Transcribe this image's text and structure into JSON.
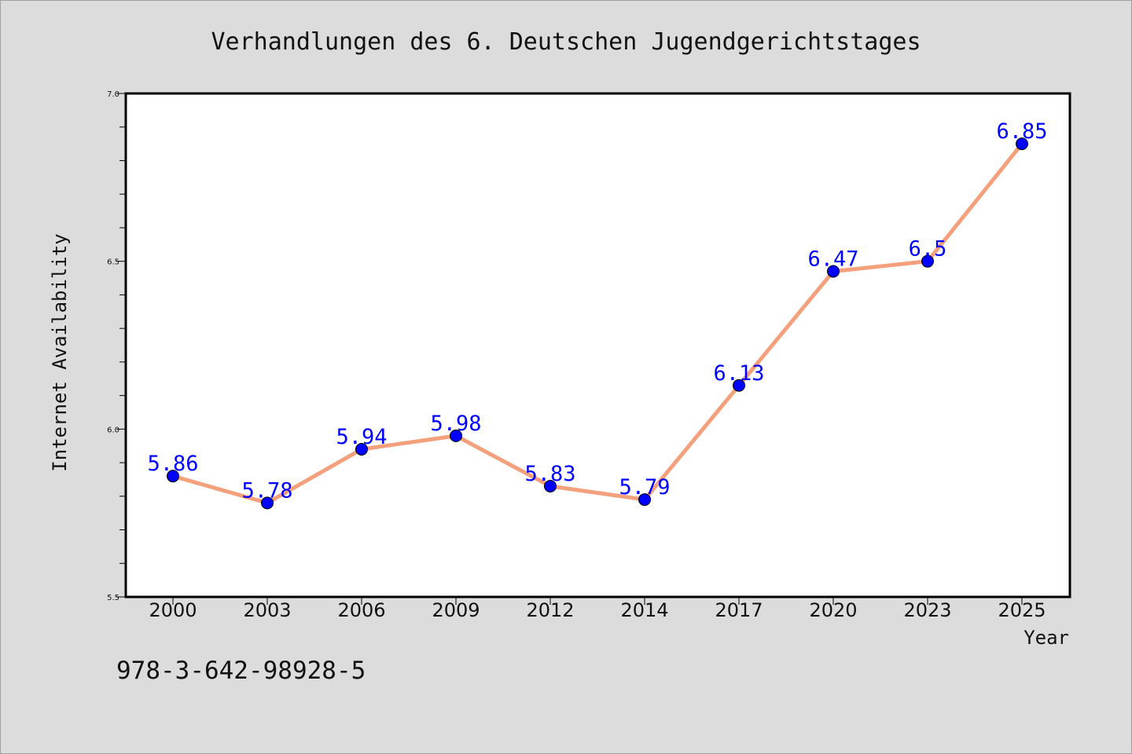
{
  "chart_data": {
    "type": "line",
    "title": "Verhandlungen des 6. Deutschen Jugendgerichtstages",
    "xlabel": "Year",
    "ylabel": "Internet Availability",
    "categories": [
      "2000",
      "2003",
      "2006",
      "2009",
      "2012",
      "2014",
      "2017",
      "2020",
      "2023",
      "2025"
    ],
    "series": [
      {
        "values": [
          5.86,
          5.78,
          5.94,
          5.98,
          5.83,
          5.79,
          6.13,
          6.47,
          6.5,
          6.85
        ],
        "data_labels": [
          "5.86",
          "5.78",
          "5.94",
          "5.98",
          "5.83",
          "5.79",
          "6.13",
          "6.47",
          "6.5",
          "6.85"
        ]
      }
    ],
    "ylim": [
      5.5,
      7.0
    ],
    "yticks": [
      "5.5",
      "6.0",
      "6.5",
      "7.0"
    ],
    "grid": false,
    "line_color": "#f4a07c",
    "marker_color": "#0000ff",
    "label_color": "#0000ff"
  },
  "footer": {
    "isbn": "978-3-642-98928-5"
  }
}
